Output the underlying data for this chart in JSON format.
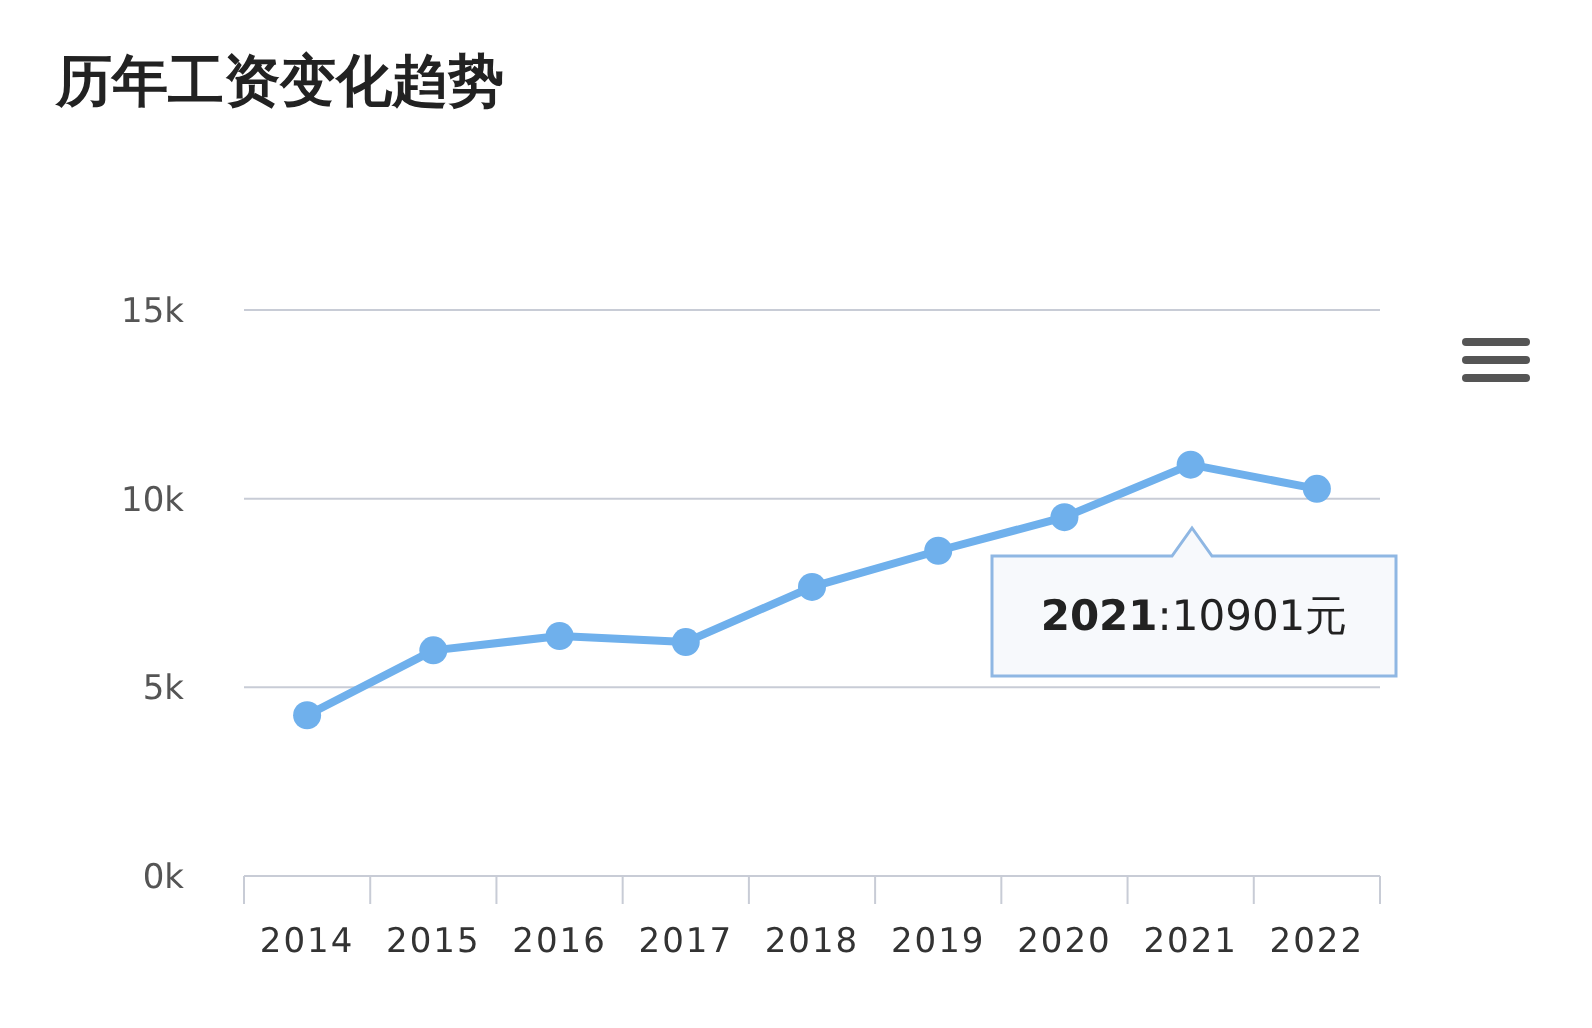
{
  "chart_data": {
    "type": "line",
    "title": "历年工资变化趋势",
    "categories": [
      "2014",
      "2015",
      "2016",
      "2017",
      "2018",
      "2019",
      "2020",
      "2021",
      "2022"
    ],
    "series": [
      {
        "color": "#6fb0ec",
        "values": [
          4260,
          5980,
          6360,
          6200,
          7660,
          8620,
          9510,
          10901,
          10260
        ]
      }
    ],
    "ylim": [
      0,
      15000
    ],
    "yticks": [
      {
        "value": 0,
        "label": "0k"
      },
      {
        "value": 5000,
        "label": "5k"
      },
      {
        "value": 10000,
        "label": "10k"
      },
      {
        "value": 15000,
        "label": "15k"
      }
    ],
    "grid": "y",
    "marker": "circle",
    "line_style": "solid",
    "annotations": [
      "2021:10901元"
    ]
  }
}
